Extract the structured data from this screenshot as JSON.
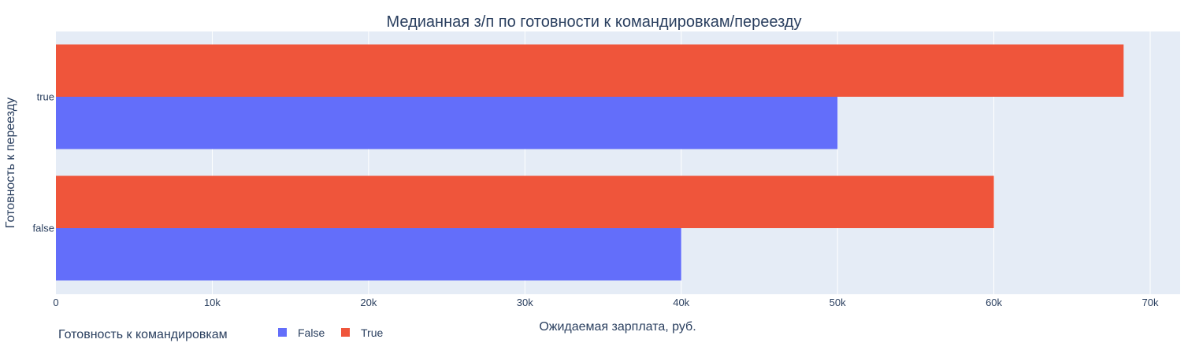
{
  "chart_data": {
    "type": "bar",
    "orientation": "horizontal",
    "barmode": "group",
    "title": "Медианная з/п по готовности к командировкам/переезду",
    "xlabel": "Ожидаемая зарплата, руб.",
    "ylabel": "Готовность к переезду",
    "categories": [
      "false",
      "true"
    ],
    "xlim": [
      0,
      72000
    ],
    "x_ticks": [
      0,
      10000,
      20000,
      30000,
      40000,
      50000,
      60000,
      70000
    ],
    "x_tick_labels": [
      "0",
      "10k",
      "20k",
      "30k",
      "40k",
      "50k",
      "60k",
      "70k"
    ],
    "grid": true,
    "legend": {
      "title": "Готовность к командировкам",
      "placement": "bottom-left",
      "orientation": "horizontal"
    },
    "series": [
      {
        "name": "False",
        "color": "#636efa",
        "values": [
          40000,
          50000
        ]
      },
      {
        "name": "True",
        "color": "#ef553b",
        "values": [
          60000,
          68300
        ]
      }
    ],
    "plot_background": "#e5ecf6",
    "grid_color": "#ffffff"
  }
}
